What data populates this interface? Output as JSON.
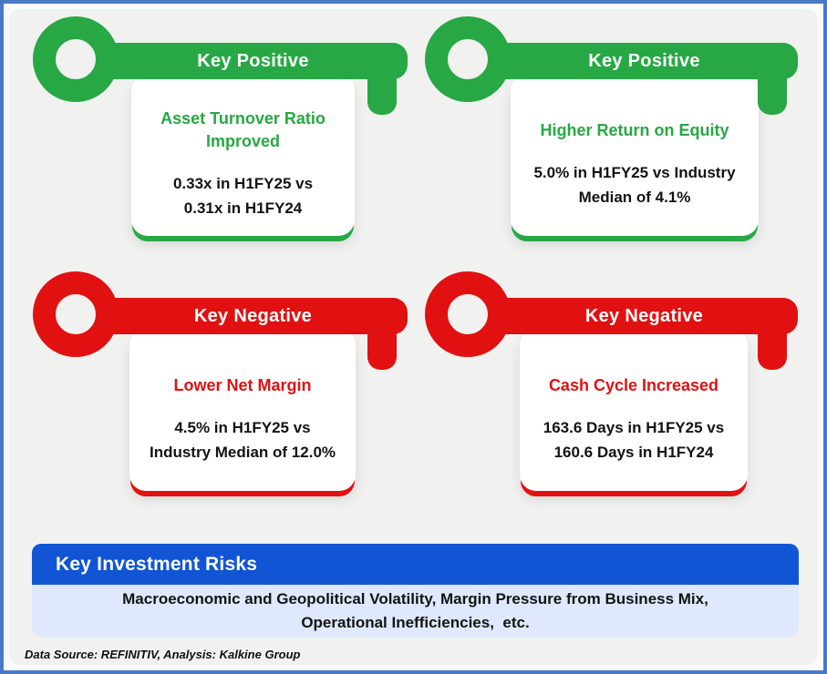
{
  "colors": {
    "positive": "#27A844",
    "negative": "#E11111",
    "risk-header-bg": "#1155D4",
    "risk-body-bg": "#DFE8FD",
    "frame-border": "#4879C6",
    "panel-bg": "#F1F1F0"
  },
  "cards": [
    {
      "type": "positive",
      "badge": "Key Positive",
      "title": "Asset Turnover Ratio Improved",
      "body_lines": [
        "0.33x in H1FY25 vs",
        "0.31x in H1FY24"
      ]
    },
    {
      "type": "positive",
      "badge": "Key Positive",
      "title": "Higher Return on Equity",
      "body_lines": [
        "5.0% in H1FY25 vs Industry",
        "Median of 4.1%"
      ]
    },
    {
      "type": "negative",
      "badge": "Key Negative",
      "title": "Lower Net Margin",
      "body_lines": [
        "4.5% in H1FY25 vs",
        "Industry Median of 12.0%"
      ]
    },
    {
      "type": "negative",
      "badge": "Key Negative",
      "title": "Cash Cycle Increased",
      "body_lines": [
        "163.6 Days in H1FY25 vs",
        "160.6 Days in H1FY24"
      ]
    }
  ],
  "risks": {
    "title": "Key Investment Risks",
    "lines": [
      "Macroeconomic and Geopolitical Volatility, Margin Pressure from Business Mix,",
      "Operational Inefficiencies,  etc."
    ]
  },
  "footer": {
    "source_note": "Data Source: REFINITIV, Analysis: Kalkine Group"
  }
}
